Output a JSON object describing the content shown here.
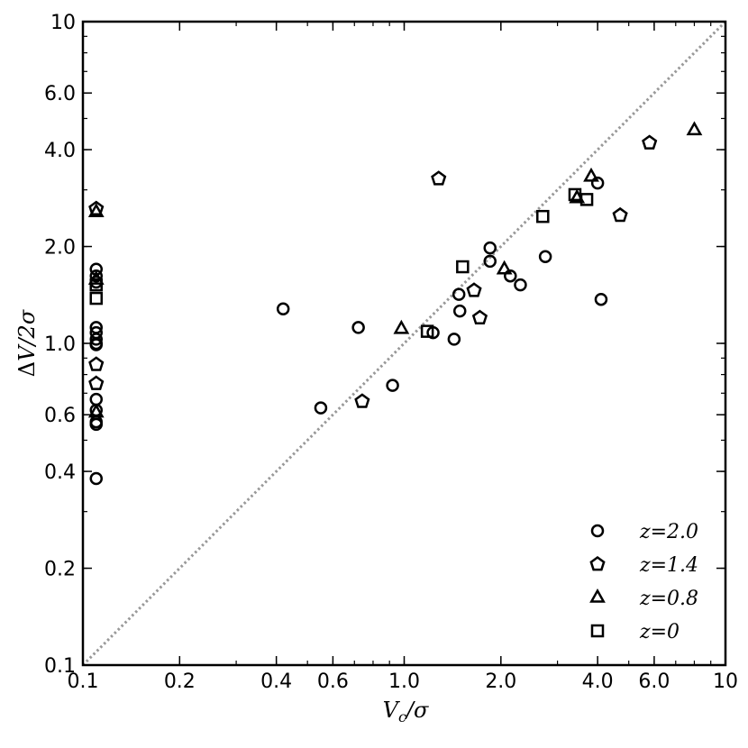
{
  "chart_data": {
    "type": "scatter",
    "xscale": "log",
    "yscale": "log",
    "xlim": [
      0.1,
      10
    ],
    "ylim": [
      0.1,
      10
    ],
    "xlabel": "V_c/σ",
    "ylabel": "ΔV/2σ",
    "xticks": [
      0.1,
      0.2,
      0.4,
      0.6,
      1.0,
      2.0,
      4.0,
      6.0,
      10
    ],
    "xtick_labels": [
      "0.1",
      "0.2",
      "0.4",
      "0.6",
      "1.0",
      "2.0",
      "4.0",
      "6.0",
      "10"
    ],
    "yticks": [
      0.1,
      0.2,
      0.4,
      0.6,
      1.0,
      2.0,
      4.0,
      6.0,
      10
    ],
    "ytick_labels": [
      "0.1",
      "0.2",
      "0.4",
      "0.6",
      "1.0",
      "2.0",
      "4.0",
      "6.0",
      "10"
    ],
    "reference_line": {
      "style": "dotted",
      "color": "#999999",
      "from": [
        0.1,
        0.1
      ],
      "to": [
        10,
        10
      ]
    },
    "legend_position": "lower-right",
    "series": [
      {
        "name": "z=2.0",
        "marker": "circle",
        "points": [
          [
            0.11,
            0.38
          ],
          [
            0.11,
            0.56
          ],
          [
            0.11,
            0.57
          ],
          [
            0.11,
            0.62
          ],
          [
            0.11,
            0.67
          ],
          [
            0.11,
            0.99
          ],
          [
            0.11,
            1.0
          ],
          [
            0.11,
            1.03
          ],
          [
            0.11,
            1.08
          ],
          [
            0.11,
            1.12
          ],
          [
            0.11,
            1.55
          ],
          [
            0.11,
            1.62
          ],
          [
            0.11,
            1.7
          ],
          [
            0.42,
            1.28
          ],
          [
            0.55,
            0.63
          ],
          [
            0.72,
            1.12
          ],
          [
            0.92,
            0.74
          ],
          [
            1.23,
            1.08
          ],
          [
            1.43,
            1.03
          ],
          [
            1.48,
            1.42
          ],
          [
            1.49,
            1.26
          ],
          [
            1.85,
            1.98
          ],
          [
            1.85,
            1.8
          ],
          [
            2.14,
            1.62
          ],
          [
            2.3,
            1.52
          ],
          [
            2.75,
            1.86
          ],
          [
            4.0,
            3.15
          ],
          [
            4.1,
            1.37
          ]
        ]
      },
      {
        "name": "z=1.4",
        "marker": "pentagon",
        "points": [
          [
            0.11,
            2.62
          ],
          [
            0.11,
            0.86
          ],
          [
            0.11,
            0.75
          ],
          [
            0.74,
            0.66
          ],
          [
            1.28,
            3.25
          ],
          [
            1.65,
            1.46
          ],
          [
            1.72,
            1.2
          ],
          [
            4.7,
            2.5
          ],
          [
            5.8,
            4.2
          ]
        ]
      },
      {
        "name": "z=0.8",
        "marker": "triangle",
        "points": [
          [
            0.11,
            2.56
          ],
          [
            0.11,
            1.58
          ],
          [
            0.11,
            0.61
          ],
          [
            0.98,
            1.11
          ],
          [
            2.05,
            1.7
          ],
          [
            3.45,
            2.83
          ],
          [
            3.82,
            3.3
          ],
          [
            8.0,
            4.6
          ]
        ]
      },
      {
        "name": "z=0",
        "marker": "square",
        "points": [
          [
            0.11,
            1.52
          ],
          [
            0.11,
            1.38
          ],
          [
            1.18,
            1.09
          ],
          [
            1.52,
            1.73
          ],
          [
            2.7,
            2.48
          ],
          [
            3.4,
            2.9
          ],
          [
            3.7,
            2.8
          ]
        ]
      }
    ]
  }
}
